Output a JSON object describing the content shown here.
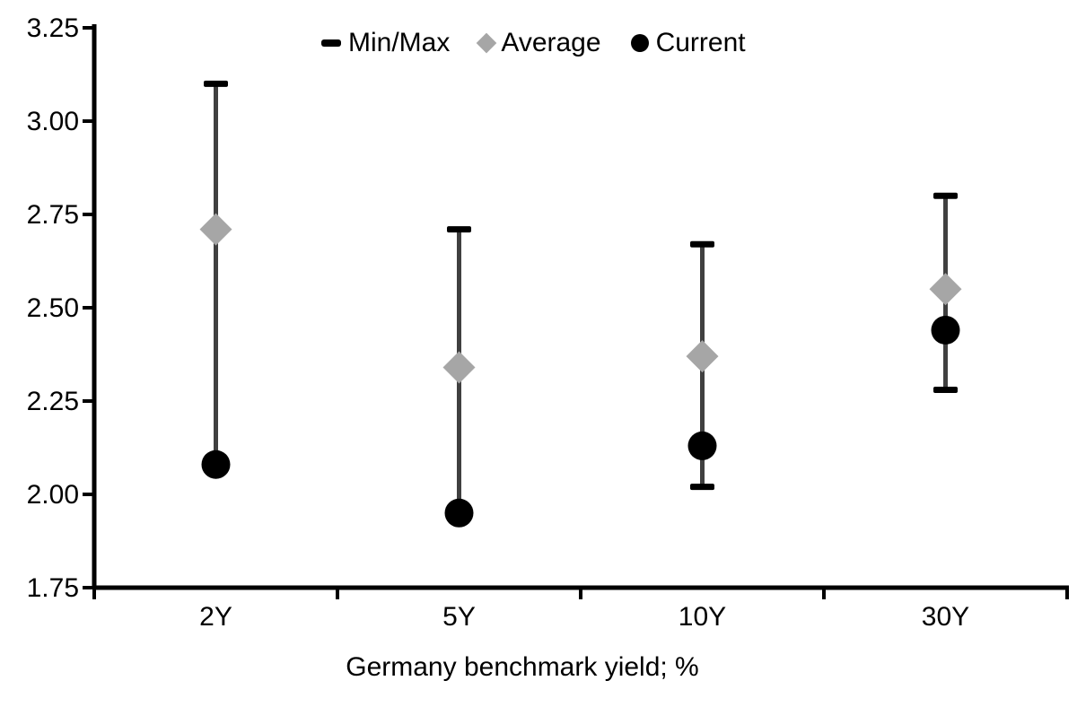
{
  "chart_data": {
    "type": "scatter",
    "subtype": "min-max-range-with-markers",
    "title": "",
    "xlabel": "Germany benchmark yield; %",
    "ylabel": "",
    "categories": [
      "2Y",
      "5Y",
      "10Y",
      "30Y"
    ],
    "series": [
      {
        "name": "Min/Max",
        "marker": "dash",
        "min": [
          2.08,
          1.95,
          2.02,
          2.28
        ],
        "max": [
          3.1,
          2.71,
          2.67,
          2.8
        ],
        "min_cap_visible": [
          false,
          false,
          true,
          true
        ]
      },
      {
        "name": "Average",
        "marker": "diamond",
        "values": [
          2.71,
          2.34,
          2.37,
          2.55
        ]
      },
      {
        "name": "Current",
        "marker": "circle",
        "values": [
          2.08,
          1.95,
          2.13,
          2.44
        ]
      }
    ],
    "ylim": [
      1.75,
      3.25
    ],
    "ytick_step": 0.25,
    "yticks": [
      "3.25",
      "3.00",
      "2.75",
      "2.50",
      "2.25",
      "2.00",
      "1.75"
    ],
    "grid": false,
    "legend_position": "top",
    "colors": {
      "range_line": "#404040",
      "cap": "#000000",
      "average": "#a6a6a6",
      "current": "#000000",
      "axis": "#000000",
      "text": "#000000",
      "background": "#ffffff"
    }
  },
  "legend": {
    "items": [
      {
        "label": "Min/Max"
      },
      {
        "label": "Average"
      },
      {
        "label": "Current"
      }
    ]
  }
}
